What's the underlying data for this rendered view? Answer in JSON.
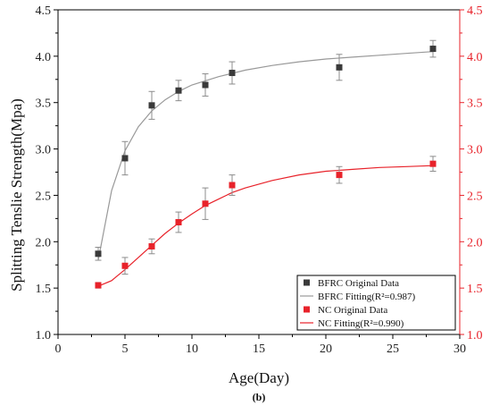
{
  "chart_data": {
    "type": "scatter",
    "caption": "(b)",
    "xlabel": "Age(Day)",
    "ylabel": "Splitting Tenslie Strength(Mpa)",
    "xlim": [
      0,
      30
    ],
    "ylim": [
      1.0,
      4.5
    ],
    "x_ticks": [
      "0",
      "5",
      "10",
      "15",
      "20",
      "25",
      "30"
    ],
    "y_ticks": [
      "1.0",
      "1.5",
      "2.0",
      "2.5",
      "3.0",
      "3.5",
      "4.0",
      "4.5"
    ],
    "right_axis_color": "#e8222a",
    "grid": false,
    "legend_position": "bottom-right",
    "series": [
      {
        "name": "BFRC Original Data",
        "kind": "points",
        "color": "#3a3a3a",
        "x": [
          3,
          5,
          7,
          9,
          11,
          13,
          21,
          28
        ],
        "y": [
          1.87,
          2.9,
          3.47,
          3.63,
          3.69,
          3.82,
          3.88,
          4.08
        ],
        "err": [
          0.07,
          0.18,
          0.15,
          0.11,
          0.12,
          0.12,
          0.14,
          0.09
        ]
      },
      {
        "name": "BFRC Fitting(R²=0.987)",
        "kind": "line",
        "color": "#999999",
        "x": [
          3,
          4,
          5,
          6,
          7,
          8,
          9,
          10,
          12,
          14,
          16,
          18,
          20,
          22,
          24,
          26,
          28
        ],
        "y": [
          1.8,
          2.55,
          2.98,
          3.24,
          3.41,
          3.53,
          3.62,
          3.69,
          3.78,
          3.85,
          3.9,
          3.94,
          3.97,
          3.99,
          4.01,
          4.03,
          4.05
        ]
      },
      {
        "name": "NC Original Data",
        "kind": "points",
        "color": "#e8222a",
        "x": [
          3,
          5,
          7,
          9,
          11,
          13,
          21,
          28
        ],
        "y": [
          1.53,
          1.74,
          1.95,
          2.21,
          2.41,
          2.61,
          2.72,
          2.84
        ],
        "err": [
          0.03,
          0.09,
          0.08,
          0.11,
          0.17,
          0.11,
          0.09,
          0.08
        ]
      },
      {
        "name": "NC Fitting(R²=0.990)",
        "kind": "line",
        "color": "#e8222a",
        "x": [
          3,
          4,
          5,
          6,
          7,
          8,
          9,
          10,
          11,
          12,
          13,
          14,
          16,
          18,
          20,
          22,
          24,
          26,
          28
        ],
        "y": [
          1.52,
          1.58,
          1.7,
          1.83,
          1.96,
          2.09,
          2.2,
          2.3,
          2.39,
          2.46,
          2.53,
          2.58,
          2.66,
          2.72,
          2.76,
          2.78,
          2.8,
          2.81,
          2.82
        ]
      }
    ]
  }
}
